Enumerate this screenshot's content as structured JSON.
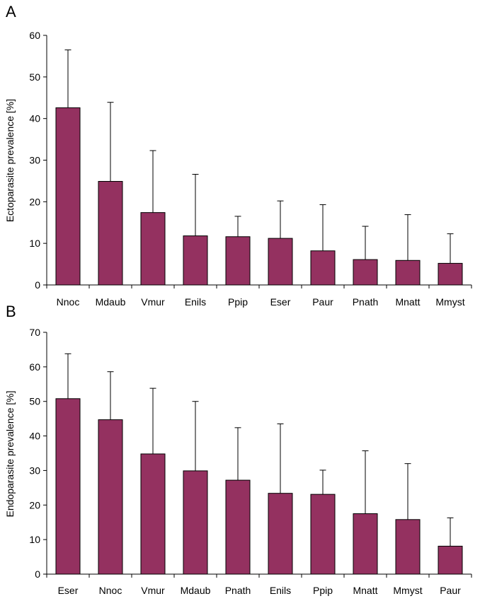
{
  "figure": {
    "panels": [
      "A",
      "B"
    ]
  },
  "colors": {
    "bar_fill": "#943160",
    "bar_stroke": "#000000",
    "axis": "#000000"
  },
  "chart_data": [
    {
      "panel": "A",
      "type": "bar",
      "title": "",
      "xlabel": "",
      "ylabel": "Ectoparasite prevalence [%]",
      "ylim": [
        0,
        60
      ],
      "yticks": [
        0,
        10,
        20,
        30,
        40,
        50,
        60
      ],
      "grid": false,
      "legend": "none",
      "categories": [
        "Nnoc",
        "Mdaub",
        "Vmur",
        "Enils",
        "Ppip",
        "Eser",
        "Paur",
        "Pnath",
        "Mnatt",
        "Mmyst"
      ],
      "values": [
        42.6,
        24.9,
        17.4,
        11.8,
        11.6,
        11.2,
        8.2,
        6.1,
        5.9,
        5.2
      ],
      "error_upper": [
        56.5,
        43.9,
        32.3,
        26.6,
        16.5,
        20.2,
        19.3,
        14.1,
        16.9,
        12.3
      ]
    },
    {
      "panel": "B",
      "type": "bar",
      "title": "",
      "xlabel": "",
      "ylabel": "Endoparasite prevalence [%]",
      "ylim": [
        0,
        70
      ],
      "yticks": [
        0,
        10,
        20,
        30,
        40,
        50,
        60,
        70
      ],
      "grid": false,
      "legend": "none",
      "categories": [
        "Eser",
        "Nnoc",
        "Vmur",
        "Mdaub",
        "Pnath",
        "Enils",
        "Ppip",
        "Mnatt",
        "Mmyst",
        "Paur"
      ],
      "values": [
        50.8,
        44.7,
        34.8,
        29.9,
        27.2,
        23.4,
        23.1,
        17.5,
        15.8,
        8.1
      ],
      "error_upper": [
        63.8,
        58.6,
        53.8,
        50.0,
        42.4,
        43.5,
        30.1,
        35.7,
        32.0,
        16.3
      ]
    }
  ]
}
